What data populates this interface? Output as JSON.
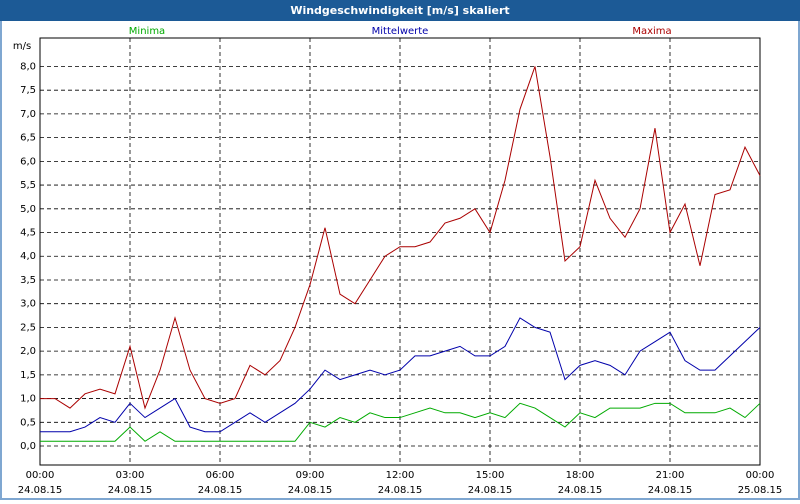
{
  "chart_data": {
    "type": "line",
    "title": "Windgeschwindigkeit [m/s] skaliert",
    "y_unit": "m/s",
    "x": [
      0,
      0.5,
      1,
      1.5,
      2,
      2.5,
      3,
      3.5,
      4,
      4.5,
      5,
      5.5,
      6,
      6.5,
      7,
      7.5,
      8,
      8.5,
      9,
      9.5,
      10,
      10.5,
      11,
      11.5,
      12,
      12.5,
      13,
      13.5,
      14,
      14.5,
      15,
      15.5,
      16,
      16.5,
      17,
      17.5,
      18,
      18.5,
      19,
      19.5,
      20,
      20.5,
      21,
      21.5,
      22,
      22.5,
      23,
      23.5,
      24
    ],
    "series": [
      {
        "name": "Minima",
        "color": "#00aa00",
        "values": [
          0.1,
          0.1,
          0.1,
          0.1,
          0.1,
          0.1,
          0.4,
          0.1,
          0.3,
          0.1,
          0.1,
          0.1,
          0.1,
          0.1,
          0.1,
          0.1,
          0.1,
          0.1,
          0.5,
          0.4,
          0.6,
          0.5,
          0.7,
          0.6,
          0.6,
          0.7,
          0.8,
          0.7,
          0.7,
          0.6,
          0.7,
          0.6,
          0.9,
          0.8,
          0.6,
          0.4,
          0.7,
          0.6,
          0.8,
          0.8,
          0.8,
          0.9,
          0.9,
          0.7,
          0.7,
          0.7,
          0.8,
          0.6,
          0.9
        ]
      },
      {
        "name": "Mittelwerte",
        "color": "#0000aa",
        "values": [
          0.3,
          0.3,
          0.3,
          0.4,
          0.6,
          0.5,
          0.9,
          0.6,
          0.8,
          1.0,
          0.4,
          0.3,
          0.3,
          0.5,
          0.7,
          0.5,
          0.7,
          0.9,
          1.2,
          1.6,
          1.4,
          1.5,
          1.6,
          1.5,
          1.6,
          1.9,
          1.9,
          2.0,
          2.1,
          1.9,
          1.9,
          2.1,
          2.7,
          2.5,
          2.4,
          1.4,
          1.7,
          1.8,
          1.7,
          1.5,
          2.0,
          2.2,
          2.4,
          1.8,
          1.6,
          1.6,
          1.9,
          2.2,
          2.5
        ]
      },
      {
        "name": "Maxima",
        "color": "#aa0000",
        "values": [
          1.0,
          1.0,
          0.8,
          1.1,
          1.2,
          1.1,
          2.1,
          0.8,
          1.6,
          2.7,
          1.6,
          1.0,
          0.9,
          1.0,
          1.7,
          1.5,
          1.8,
          2.5,
          3.4,
          4.6,
          3.2,
          3.0,
          3.5,
          4.0,
          4.2,
          4.2,
          4.3,
          4.7,
          4.8,
          5.0,
          4.5,
          5.6,
          7.1,
          8.0,
          6.1,
          3.9,
          4.2,
          5.6,
          4.8,
          4.4,
          5.0,
          6.7,
          4.5,
          5.1,
          3.8,
          5.3,
          5.4,
          6.3,
          5.7
        ]
      }
    ],
    "xlim": [
      0,
      24
    ],
    "xticks": [
      {
        "value": 0,
        "label": "00:00"
      },
      {
        "value": 3,
        "label": "03:00"
      },
      {
        "value": 6,
        "label": "06:00"
      },
      {
        "value": 9,
        "label": "09:00"
      },
      {
        "value": 12,
        "label": "12:00"
      },
      {
        "value": 15,
        "label": "15:00"
      },
      {
        "value": 18,
        "label": "18:00"
      },
      {
        "value": 21,
        "label": "21:00"
      },
      {
        "value": 24,
        "label": "00:00"
      }
    ],
    "xtick_dates": [
      "24.08.15",
      "24.08.15",
      "24.08.15",
      "24.08.15",
      "24.08.15",
      "24.08.15",
      "24.08.15",
      "24.08.15",
      "25.08.15"
    ],
    "ylim": [
      -0.4,
      8.6
    ],
    "yticks": [
      {
        "value": 0,
        "label": "0,0"
      },
      {
        "value": 0.5,
        "label": "0,5"
      },
      {
        "value": 1,
        "label": "1,0"
      },
      {
        "value": 1.5,
        "label": "1,5"
      },
      {
        "value": 2,
        "label": "2,0"
      },
      {
        "value": 2.5,
        "label": "2,5"
      },
      {
        "value": 3,
        "label": "3,0"
      },
      {
        "value": 3.5,
        "label": "3,5"
      },
      {
        "value": 4,
        "label": "4,0"
      },
      {
        "value": 4.5,
        "label": "4,5"
      },
      {
        "value": 5,
        "label": "5,0"
      },
      {
        "value": 5.5,
        "label": "5,5"
      },
      {
        "value": 6,
        "label": "6,0"
      },
      {
        "value": 6.5,
        "label": "6,5"
      },
      {
        "value": 7,
        "label": "7,0"
      },
      {
        "value": 7.5,
        "label": "7,5"
      },
      {
        "value": 8,
        "label": "8,0"
      }
    ],
    "grid": true
  }
}
